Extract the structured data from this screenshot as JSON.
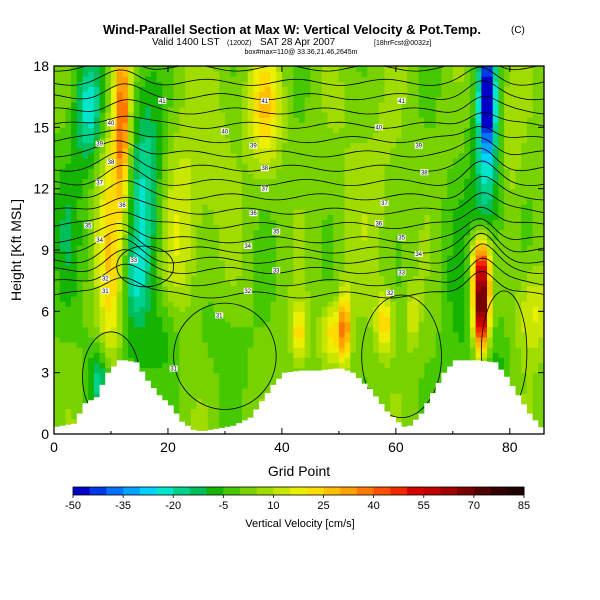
{
  "chart_data": {
    "type": "heatmap",
    "title": "Wind-Parallel Section at Max W: Vertical Velocity & Pot.Temp.",
    "title_units": "(C)",
    "subtitle_main": "Valid 1400 LST",
    "subtitle_utc": "(1200Z)",
    "subtitle_date": "SAT 28 Apr 2007",
    "subtitle_fcst": "[18hrFcst@0032z]",
    "subtitle_box": "box#max=110@ 33.36,21.46,2645m",
    "xlabel": "Grid Point",
    "ylabel": "Height [Kft MSL]",
    "xlim": [
      0,
      86
    ],
    "ylim": [
      0,
      18
    ],
    "xticks": [
      "0",
      "20",
      "40",
      "60",
      "80"
    ],
    "yticks": [
      "0",
      "3",
      "6",
      "9",
      "12",
      "15",
      "18"
    ],
    "colorbar": {
      "label": "Vertical Velocity [cm/s]",
      "ticks": [
        "-50",
        "-35",
        "-20",
        "-5",
        "10",
        "25",
        "40",
        "55",
        "70",
        "85"
      ],
      "min": -50,
      "max": 85,
      "step": 5
    },
    "palette": [
      "#0000c8",
      "#0038e6",
      "#0070ff",
      "#00a4ff",
      "#00d2ff",
      "#00e6cc",
      "#00d28c",
      "#00be5a",
      "#14b400",
      "#46c800",
      "#78d200",
      "#a0dc00",
      "#c8e600",
      "#ebf000",
      "#ffdc00",
      "#ffbe00",
      "#ffa000",
      "#ff7800",
      "#ff5000",
      "#f02800",
      "#d70000",
      "#be0000",
      "#a00000",
      "#780000",
      "#500000",
      "#320000",
      "#1e0000"
    ],
    "terrain_kft": [
      [
        0,
        0.3
      ],
      [
        4,
        0.5
      ],
      [
        6,
        1.5
      ],
      [
        8,
        1.8
      ],
      [
        10,
        3.0
      ],
      [
        12,
        3.6
      ],
      [
        14,
        3.5
      ],
      [
        16,
        2.6
      ],
      [
        18,
        1.9
      ],
      [
        20,
        1.4
      ],
      [
        22,
        0.6
      ],
      [
        24,
        0.2
      ],
      [
        26,
        0.1
      ],
      [
        28,
        0.2
      ],
      [
        32,
        0.4
      ],
      [
        35,
        0.8
      ],
      [
        37,
        1.6
      ],
      [
        39,
        2.4
      ],
      [
        41,
        3.0
      ],
      [
        44,
        3.1
      ],
      [
        47,
        3.1
      ],
      [
        50,
        3.2
      ],
      [
        52,
        3.0
      ],
      [
        55,
        2.2
      ],
      [
        58,
        1.1
      ],
      [
        61,
        0.3
      ],
      [
        63,
        0.4
      ],
      [
        65,
        1.0
      ],
      [
        67,
        2.0
      ],
      [
        69,
        3.0
      ],
      [
        71,
        3.6
      ],
      [
        74,
        3.6
      ],
      [
        77,
        3.5
      ],
      [
        79,
        2.8
      ],
      [
        81,
        1.9
      ],
      [
        83,
        1.0
      ],
      [
        86,
        0.0
      ]
    ],
    "w_field": [
      {
        "x": 10,
        "z": 8.0,
        "sx": 1.6,
        "sz": 5.5,
        "w": 22
      },
      {
        "x": 12,
        "z": 3.0,
        "sx": 4.0,
        "sz": 2.5,
        "w": -9
      },
      {
        "x": 12,
        "z": 15.5,
        "sx": 1.0,
        "sz": 3.0,
        "w": 38
      },
      {
        "x": 8,
        "z": 2.6,
        "sx": 1.2,
        "sz": 1.0,
        "w": -18
      },
      {
        "x": 6,
        "z": 16.0,
        "sx": 1.8,
        "sz": 2.0,
        "w": -25
      },
      {
        "x": 16,
        "z": 12.0,
        "sx": 2.2,
        "sz": 4.0,
        "w": -22
      },
      {
        "x": 14,
        "z": 7.5,
        "sx": 1.5,
        "sz": 1.2,
        "w": -12
      },
      {
        "x": 20,
        "z": 5.0,
        "sx": 2.0,
        "sz": 1.5,
        "w": -8
      },
      {
        "x": 22,
        "z": 10.0,
        "sx": 2.5,
        "sz": 3.5,
        "w": 12
      },
      {
        "x": 30,
        "z": 4.5,
        "sx": 4.0,
        "sz": 1.5,
        "w": -4
      },
      {
        "x": 37,
        "z": 16.0,
        "sx": 2.0,
        "sz": 2.0,
        "w": 22
      },
      {
        "x": 43,
        "z": 5.0,
        "sx": 1.0,
        "sz": 1.0,
        "w": 20
      },
      {
        "x": 49,
        "z": 5.0,
        "sx": 1.5,
        "sz": 1.0,
        "w": 20
      },
      {
        "x": 51,
        "z": 5.3,
        "sx": 0.7,
        "sz": 1.3,
        "w": 30
      },
      {
        "x": 58,
        "z": 5.5,
        "sx": 1.0,
        "sz": 1.0,
        "w": 22
      },
      {
        "x": 63,
        "z": 5.8,
        "sx": 0.8,
        "sz": 1.0,
        "w": 14
      },
      {
        "x": 72,
        "z": 6.8,
        "sx": 3.0,
        "sz": 4.0,
        "w": -8
      },
      {
        "x": 75,
        "z": 6.2,
        "sx": 1.0,
        "sz": 1.5,
        "w": 78
      },
      {
        "x": 75,
        "z": 8.5,
        "sx": 1.4,
        "sz": 1.2,
        "w": 35
      },
      {
        "x": 76,
        "z": 13.0,
        "sx": 1.8,
        "sz": 4.5,
        "w": -20
      },
      {
        "x": 76,
        "z": 16.5,
        "sx": 0.9,
        "sz": 1.8,
        "w": -45
      },
      {
        "x": 80,
        "z": 15.0,
        "sx": 1.5,
        "sz": 3.0,
        "w": 8
      },
      {
        "x": 84,
        "z": 6.0,
        "sx": 2.0,
        "sz": 1.5,
        "w": 15
      },
      {
        "x": 78,
        "z": 3.0,
        "sx": 2.0,
        "sz": 1.5,
        "w": -6
      },
      {
        "x": 28,
        "z": 14.0,
        "sx": 3.0,
        "sz": 3.0,
        "w": 6
      },
      {
        "x": 55,
        "z": 12.0,
        "sx": 4.0,
        "sz": 4.0,
        "w": 5
      },
      {
        "x": 2,
        "z": 10.0,
        "sx": 2.0,
        "sz": 3.0,
        "w": -10
      }
    ],
    "w_background": 2,
    "theta_base_kft": [
      6.8,
      7.4,
      8.0,
      8.5,
      9.0,
      9.5,
      10.2,
      10.9,
      11.6,
      12.3,
      13.0,
      13.7,
      14.4,
      15.1,
      15.8,
      16.5,
      17.2,
      17.9
    ],
    "theta_bumps": [
      {
        "x": 12,
        "sx": 3.0,
        "amp": 1.0
      },
      {
        "x": 75,
        "sx": 2.5,
        "amp": 1.3
      }
    ],
    "contour_labels": [
      {
        "x": 19,
        "z": 16.3,
        "text": "41"
      },
      {
        "x": 37,
        "z": 16.3,
        "text": "41"
      },
      {
        "x": 61,
        "z": 16.3,
        "text": "41"
      },
      {
        "x": 10,
        "z": 15.2,
        "text": "40"
      },
      {
        "x": 30,
        "z": 14.8,
        "text": "40"
      },
      {
        "x": 57,
        "z": 15.0,
        "text": "40"
      },
      {
        "x": 8,
        "z": 14.2,
        "text": "39"
      },
      {
        "x": 35,
        "z": 14.1,
        "text": "39"
      },
      {
        "x": 64,
        "z": 14.1,
        "text": "39"
      },
      {
        "x": 10,
        "z": 13.3,
        "text": "38"
      },
      {
        "x": 37,
        "z": 13.0,
        "text": "38"
      },
      {
        "x": 65,
        "z": 12.8,
        "text": "38"
      },
      {
        "x": 8,
        "z": 12.3,
        "text": "37"
      },
      {
        "x": 37,
        "z": 12.0,
        "text": "37"
      },
      {
        "x": 58,
        "z": 11.3,
        "text": "37"
      },
      {
        "x": 12,
        "z": 11.2,
        "text": "36"
      },
      {
        "x": 35,
        "z": 10.8,
        "text": "36"
      },
      {
        "x": 57,
        "z": 10.3,
        "text": "36"
      },
      {
        "x": 6,
        "z": 10.2,
        "text": "35"
      },
      {
        "x": 39,
        "z": 9.9,
        "text": "35"
      },
      {
        "x": 61,
        "z": 9.6,
        "text": "35"
      },
      {
        "x": 8,
        "z": 9.5,
        "text": "34"
      },
      {
        "x": 34,
        "z": 9.2,
        "text": "34"
      },
      {
        "x": 64,
        "z": 8.8,
        "text": "34"
      },
      {
        "x": 14,
        "z": 8.5,
        "text": "33"
      },
      {
        "x": 39,
        "z": 8.0,
        "text": "33"
      },
      {
        "x": 61,
        "z": 7.9,
        "text": "33"
      },
      {
        "x": 9,
        "z": 7.6,
        "text": "32"
      },
      {
        "x": 34,
        "z": 7.0,
        "text": "32"
      },
      {
        "x": 59,
        "z": 6.9,
        "text": "32"
      },
      {
        "x": 9,
        "z": 7.0,
        "text": "31"
      },
      {
        "x": 29,
        "z": 5.8,
        "text": "31"
      },
      {
        "x": 21,
        "z": 3.2,
        "text": "31"
      }
    ],
    "w_contour_levels": [
      0
    ]
  }
}
